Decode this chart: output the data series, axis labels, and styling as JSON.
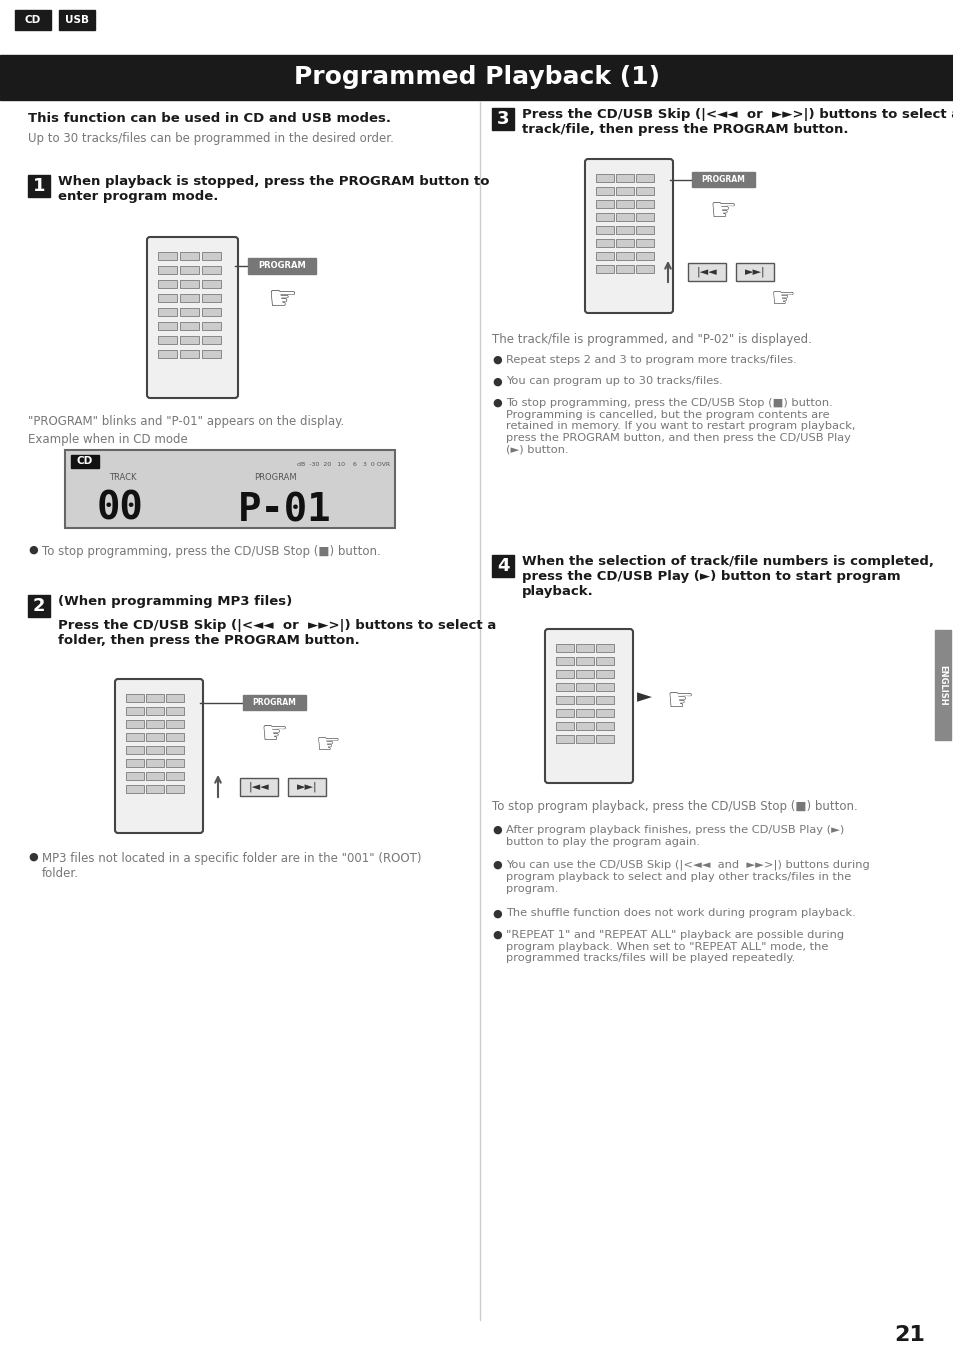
{
  "title": "Programmed Playback (1)",
  "bg_color": "#ffffff",
  "header_bar_color": "#1a1a1a",
  "header_text_color": "#ffffff",
  "cd_usb_labels": [
    "CD",
    "USB"
  ],
  "cd_usb_bg": "#1a1a1a",
  "cd_usb_text": "#ffffff",
  "bold_intro": "This function can be used in CD and USB modes.",
  "intro_sub": "Up to 30 tracks/files can be programmed in the desired order.",
  "step1_num": "1",
  "step1_text": "When playback is stopped, press the PROGRAM button to\nenter program mode.",
  "step1_note1": "\"PROGRAM\" blinks and \"P-01\" appears on the display.",
  "step1_note2": "Example when in CD mode",
  "step1_bullet": "To stop programming, press the CD/USB Stop (■) button.",
  "step2_num": "2",
  "step2_header": "(When programming MP3 files)",
  "step2_subtext": "Press the CD/USB Skip (|<◄◄  or  ►►>|) buttons to select a\nfolder, then press the PROGRAM button.",
  "step2_bullet": "MP3 files not located in a specific folder are in the \"001\" (ROOT)\nfolder.",
  "step3_num": "3",
  "step3_text": "Press the CD/USB Skip (|<◄◄  or  ►►>|) buttons to select a\ntrack/file, then press the PROGRAM button.",
  "step3_note": "The track/file is programmed, and \"P-02\" is displayed.",
  "step3_bullet1": "Repeat steps 2 and 3 to program more tracks/files.",
  "step3_bullet2": "You can program up to 30 tracks/files.",
  "step3_bullet3": "To stop programming, press the CD/USB Stop (■) button.\nProgramming is cancelled, but the program contents are\nretained in memory. If you want to restart program playback,\npress the PROGRAM button, and then press the CD/USB Play\n(►) button.",
  "step4_num": "4",
  "step4_text": "When the selection of track/file numbers is completed,\npress the CD/USB Play (►) button to start program\nplayback.",
  "step4_note": "To stop program playback, press the CD/USB Stop (■) button.",
  "step4_bullet1": "After program playback finishes, press the CD/USB Play (►)\nbutton to play the program again.",
  "step4_bullet2": "You can use the CD/USB Skip (|<◄◄  and  ►►>|) buttons during\nprogram playback to select and play other tracks/files in the\nprogram.",
  "step4_bullet3": "The shuffle function does not work during program playback.",
  "step4_bullet4": "\"REPEAT 1\" and \"REPEAT ALL\" playback are possible during\nprogram playback. When set to \"REPEAT ALL\" mode, the\nprogrammed tracks/files will be played repeatedly.",
  "page_num": "21",
  "english_tab_color": "#888888",
  "text_color_dark": "#1a1a1a",
  "text_color_gray": "#777777",
  "step_box_color": "#1a1a1a",
  "step_box_text": "#ffffff"
}
